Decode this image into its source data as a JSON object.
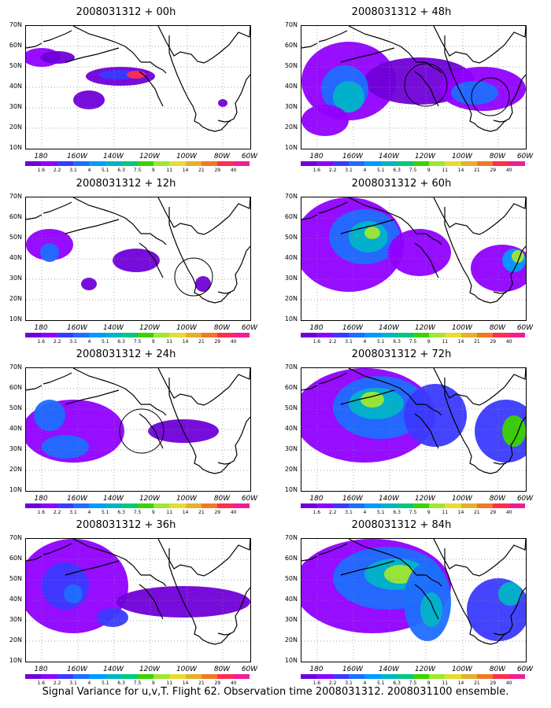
{
  "caption": "Signal Variance for u,v,T. Flight 62. Observation time 2008031312. 2008031100 ensemble.",
  "lat_labels": [
    "70N",
    "60N",
    "50N",
    "40N",
    "30N",
    "20N",
    "10N"
  ],
  "lon_labels": [
    "180",
    "160W",
    "140W",
    "120W",
    "100W",
    "80W",
    "60W"
  ],
  "colorbar": {
    "labels": [
      "1.6",
      "2.2",
      "3.1",
      "4",
      "5.1",
      "6.3",
      "7.5",
      "9",
      "11",
      "14",
      "21",
      "29",
      "40"
    ],
    "colors": [
      "#7000d8",
      "#9000ff",
      "#3a3aff",
      "#1e6eff",
      "#009bff",
      "#00b4c8",
      "#00c880",
      "#3cd200",
      "#a0e632",
      "#e6dc32",
      "#e6af2d",
      "#f07828",
      "#ff2d50",
      "#f01e96"
    ]
  },
  "panels": [
    {
      "title": "2008031312 + 00h"
    },
    {
      "title": "2008031312 + 48h"
    },
    {
      "title": "2008031312 + 12h"
    },
    {
      "title": "2008031312 + 60h"
    },
    {
      "title": "2008031312 + 24h"
    },
    {
      "title": "2008031312 + 72h"
    },
    {
      "title": "2008031312 + 36h"
    },
    {
      "title": "2008031312 + 84h"
    }
  ]
}
